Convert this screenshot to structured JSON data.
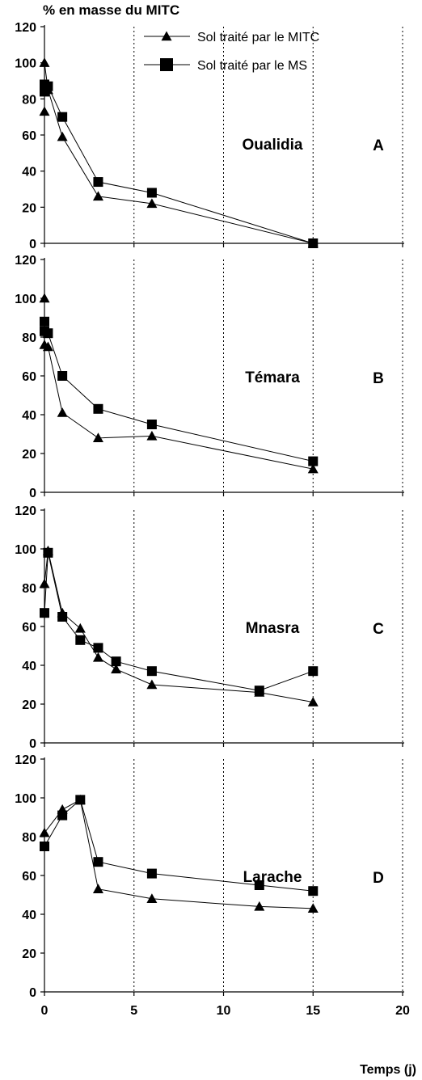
{
  "chart_data": {
    "type": "line",
    "ylabel": "% en masse du MITC",
    "xlabel": "Temps (j)",
    "xlim": [
      0,
      20
    ],
    "ylim": [
      0,
      120
    ],
    "xticks": [
      0,
      5,
      10,
      15,
      20
    ],
    "yticks": [
      0,
      20,
      40,
      60,
      80,
      100,
      120
    ],
    "grid": "vertical dotted",
    "legend": {
      "placement": "top-right",
      "entries": [
        {
          "label": "Sol traité par le MITC",
          "marker": "triangle"
        },
        {
          "label": "Sol traité par le MS",
          "marker": "square"
        }
      ]
    },
    "panels": [
      {
        "name": "Oualidia",
        "letter": "A",
        "series": [
          {
            "name": "Sol traité par le MITC",
            "marker": "triangle",
            "x": [
              0,
              0,
              0.2,
              1,
              3,
              6,
              15
            ],
            "y": [
              73,
              100,
              85,
              59,
              26,
              22,
              0
            ]
          },
          {
            "name": "Sol traité par le MS",
            "marker": "square",
            "x": [
              0,
              0,
              0.2,
              1,
              3,
              6,
              15
            ],
            "y": [
              88,
              84,
              87,
              70,
              34,
              28,
              0
            ]
          }
        ]
      },
      {
        "name": "Témara",
        "letter": "B",
        "series": [
          {
            "name": "Sol traité par le MITC",
            "marker": "triangle",
            "x": [
              0,
              0,
              0.2,
              1,
              3,
              6,
              15
            ],
            "y": [
              100,
              76,
              75,
              41,
              28,
              29,
              12
            ]
          },
          {
            "name": "Sol traité par le MS",
            "marker": "square",
            "x": [
              0,
              0,
              0.2,
              1,
              3,
              6,
              15
            ],
            "y": [
              88,
              83,
              82,
              60,
              43,
              35,
              16
            ]
          }
        ]
      },
      {
        "name": "Mnasra",
        "letter": "C",
        "series": [
          {
            "name": "Sol traité par le MITC",
            "marker": "triangle",
            "x": [
              0,
              0.2,
              1,
              2,
              3,
              4,
              6,
              12,
              15
            ],
            "y": [
              82,
              99,
              67,
              59,
              44,
              38,
              30,
              26,
              21
            ]
          },
          {
            "name": "Sol traité par le MS",
            "marker": "square",
            "x": [
              0,
              0.2,
              1,
              2,
              3,
              4,
              6,
              12,
              15
            ],
            "y": [
              67,
              98,
              65,
              53,
              49,
              42,
              37,
              27,
              37
            ]
          }
        ]
      },
      {
        "name": "Larache",
        "letter": "D",
        "series": [
          {
            "name": "Sol traité par le MITC",
            "marker": "triangle",
            "x": [
              0,
              1,
              2,
              3,
              6,
              12,
              15
            ],
            "y": [
              82,
              94,
              99,
              53,
              48,
              44,
              43
            ]
          },
          {
            "name": "Sol traité par le MS",
            "marker": "square",
            "x": [
              0,
              1,
              2,
              3,
              6,
              12,
              15
            ],
            "y": [
              75,
              91,
              99,
              67,
              61,
              55,
              52
            ]
          }
        ]
      }
    ]
  }
}
